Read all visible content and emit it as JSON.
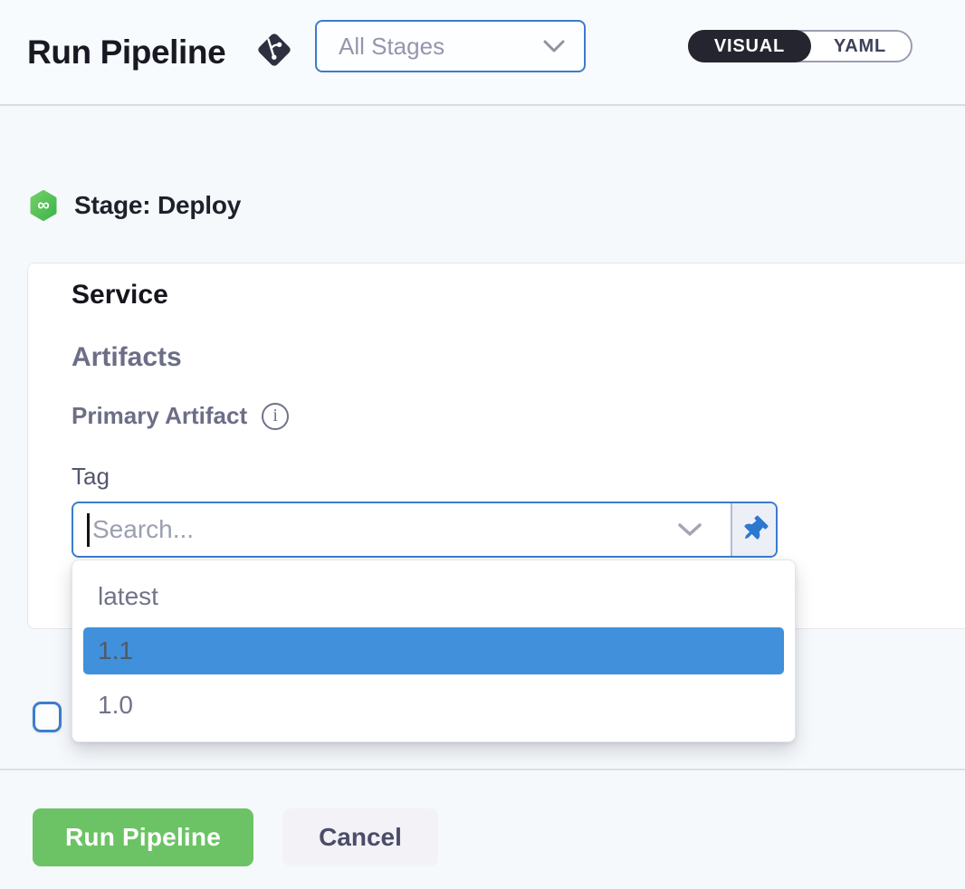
{
  "header": {
    "title": "Run Pipeline",
    "stage_select": {
      "value": "All Stages"
    },
    "view_toggle": {
      "visual_label": "VISUAL",
      "yaml_label": "YAML",
      "active": "VISUAL"
    }
  },
  "stage": {
    "label": "Stage: Deploy"
  },
  "card": {
    "service_heading": "Service",
    "artifacts_heading": "Artifacts",
    "primary_artifact_label": "Primary Artifact",
    "tag_label": "Tag",
    "tag_input": {
      "value": "",
      "placeholder": "Search..."
    }
  },
  "dropdown": {
    "options": [
      {
        "label": "latest",
        "highlighted": false
      },
      {
        "label": "1.1",
        "highlighted": true
      },
      {
        "label": "1.0",
        "highlighted": false
      }
    ]
  },
  "checkbox": {
    "checked": false
  },
  "footer": {
    "run_label": "Run Pipeline",
    "cancel_label": "Cancel"
  },
  "icons": {
    "deploy_stage_glyph": "∞",
    "info_glyph": "i"
  },
  "colors": {
    "accent_blue": "#3a7ccd",
    "highlight_blue": "#4090db",
    "run_green": "#6cc365",
    "toggle_dark": "#24252f",
    "label_gray": "#6c6e86"
  }
}
